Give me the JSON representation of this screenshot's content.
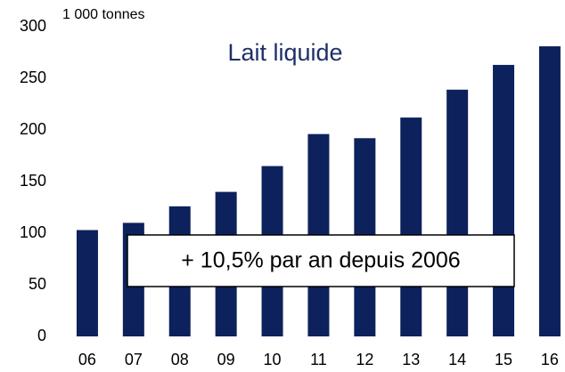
{
  "chart_data": {
    "type": "bar",
    "title": "Lait liquide",
    "unit_label": "1 000 tonnes",
    "annotation": "+ 10,5% par an depuis 2006",
    "categories": [
      "06",
      "07",
      "08",
      "09",
      "10",
      "11",
      "12",
      "13",
      "14",
      "15",
      "16"
    ],
    "values": [
      103,
      110,
      126,
      140,
      165,
      196,
      192,
      212,
      239,
      263,
      281
    ],
    "color": "#0d215c",
    "ylim": [
      0,
      300
    ],
    "yticks": [
      0,
      50,
      100,
      150,
      200,
      250,
      300
    ],
    "grid": false
  }
}
